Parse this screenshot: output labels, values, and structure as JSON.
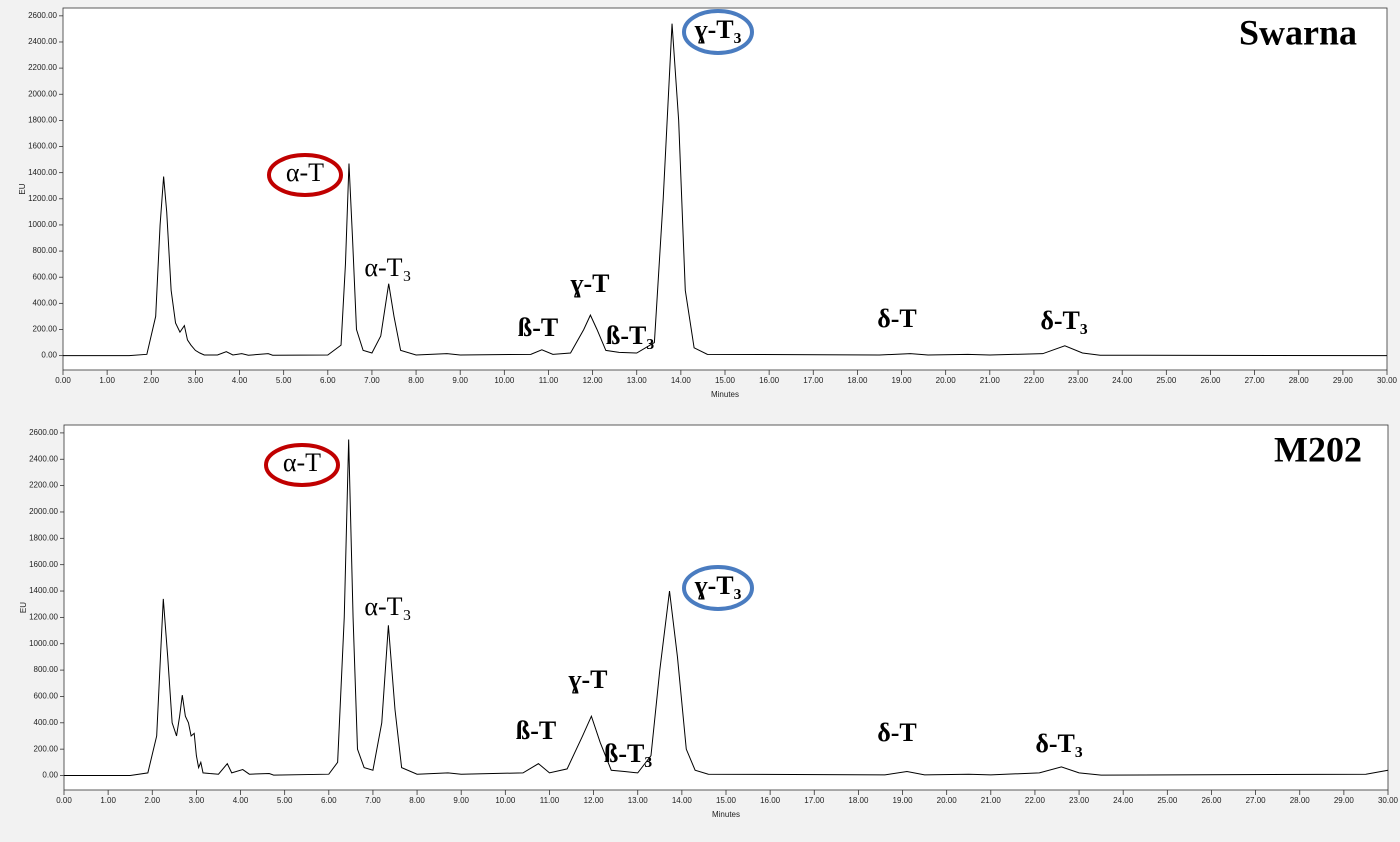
{
  "chart_data": [
    {
      "type": "line",
      "title": "Swarna",
      "x_label": "Minutes",
      "y_label": "EU",
      "xlim": [
        0,
        30
      ],
      "ylim": [
        -110,
        2660
      ],
      "xticks": [
        {
          "value": 0,
          "label": "0.00"
        },
        {
          "value": 1,
          "label": "1.00"
        },
        {
          "value": 2,
          "label": "2.00"
        },
        {
          "value": 3,
          "label": "3.00"
        },
        {
          "value": 4,
          "label": "4.00"
        },
        {
          "value": 5,
          "label": "5.00"
        },
        {
          "value": 6,
          "label": "6.00"
        },
        {
          "value": 7,
          "label": "7.00"
        },
        {
          "value": 8,
          "label": "8.00"
        },
        {
          "value": 9,
          "label": "9.00"
        },
        {
          "value": 10,
          "label": "10.00"
        },
        {
          "value": 11,
          "label": "11.00"
        },
        {
          "value": 12,
          "label": "12.00"
        },
        {
          "value": 13,
          "label": "13.00"
        },
        {
          "value": 14,
          "label": "14.00"
        },
        {
          "value": 15,
          "label": "15.00"
        },
        {
          "value": 16,
          "label": "16.00"
        },
        {
          "value": 17,
          "label": "17.00"
        },
        {
          "value": 18,
          "label": "18.00"
        },
        {
          "value": 19,
          "label": "19.00"
        },
        {
          "value": 20,
          "label": "20.00"
        },
        {
          "value": 21,
          "label": "21.00"
        },
        {
          "value": 22,
          "label": "22.00"
        },
        {
          "value": 23,
          "label": "23.00"
        },
        {
          "value": 24,
          "label": "24.00"
        },
        {
          "value": 25,
          "label": "25.00"
        },
        {
          "value": 26,
          "label": "26.00"
        },
        {
          "value": 27,
          "label": "27.00"
        },
        {
          "value": 28,
          "label": "28.00"
        },
        {
          "value": 29,
          "label": "29.00"
        },
        {
          "value": 30,
          "label": "30.00"
        }
      ],
      "yticks": [
        {
          "value": 0,
          "label": "0.00"
        },
        {
          "value": 200,
          "label": "200.00"
        },
        {
          "value": 400,
          "label": "400.00"
        },
        {
          "value": 600,
          "label": "600.00"
        },
        {
          "value": 800,
          "label": "800.00"
        },
        {
          "value": 1000,
          "label": "1000.00"
        },
        {
          "value": 1200,
          "label": "1200.00"
        },
        {
          "value": 1400,
          "label": "1400.00"
        },
        {
          "value": 1600,
          "label": "1600.00"
        },
        {
          "value": 1800,
          "label": "1800.00"
        },
        {
          "value": 2000,
          "label": "2000.00"
        },
        {
          "value": 2200,
          "label": "2200.00"
        },
        {
          "value": 2400,
          "label": "2400.00"
        },
        {
          "value": 2600,
          "label": "2600.00"
        }
      ],
      "color": "#000000",
      "x": [
        0,
        1.5,
        1.9,
        2.1,
        2.2,
        2.28,
        2.35,
        2.45,
        2.55,
        2.65,
        2.75,
        2.82,
        2.9,
        3.0,
        3.1,
        3.2,
        3.5,
        3.7,
        3.85,
        4.05,
        4.2,
        4.65,
        4.75,
        6.0,
        6.3,
        6.4,
        6.48,
        6.56,
        6.65,
        6.8,
        7.0,
        7.2,
        7.38,
        7.5,
        7.65,
        8.0,
        8.7,
        9.0,
        10.6,
        10.85,
        11.1,
        11.5,
        11.8,
        11.95,
        12.1,
        12.3,
        12.6,
        13.0,
        13.4,
        13.6,
        13.8,
        13.95,
        14.1,
        14.3,
        14.6,
        18.5,
        19.2,
        19.6,
        20.5,
        21.0,
        22.2,
        22.7,
        23.1,
        23.5,
        30
      ],
      "values": [
        0,
        0,
        10,
        300,
        1000,
        1370,
        1100,
        500,
        250,
        180,
        230,
        120,
        80,
        40,
        20,
        5,
        5,
        30,
        5,
        15,
        3,
        15,
        3,
        5,
        80,
        700,
        1470,
        900,
        200,
        40,
        20,
        150,
        550,
        300,
        40,
        5,
        15,
        5,
        10,
        45,
        10,
        20,
        200,
        310,
        200,
        40,
        25,
        20,
        100,
        1200,
        2540,
        1800,
        500,
        60,
        10,
        5,
        15,
        5,
        10,
        5,
        15,
        75,
        20,
        3,
        0
      ],
      "annotations": [
        "α-T",
        "α-T₃",
        "ß-T",
        "ɣ-T",
        "ß-T₃",
        "ɣ-T₃",
        "δ-T",
        "δ-T₃"
      ]
    },
    {
      "type": "line",
      "title": "M202",
      "x_label": "Minutes",
      "y_label": "EU",
      "xlim": [
        0,
        30
      ],
      "ylim": [
        -110,
        2660
      ],
      "xticks": [
        {
          "value": 0,
          "label": "0.00"
        },
        {
          "value": 1,
          "label": "1.00"
        },
        {
          "value": 2,
          "label": "2.00"
        },
        {
          "value": 3,
          "label": "3.00"
        },
        {
          "value": 4,
          "label": "4.00"
        },
        {
          "value": 5,
          "label": "5.00"
        },
        {
          "value": 6,
          "label": "6.00"
        },
        {
          "value": 7,
          "label": "7.00"
        },
        {
          "value": 8,
          "label": "8.00"
        },
        {
          "value": 9,
          "label": "9.00"
        },
        {
          "value": 10,
          "label": "10.00"
        },
        {
          "value": 11,
          "label": "11.00"
        },
        {
          "value": 12,
          "label": "12.00"
        },
        {
          "value": 13,
          "label": "13.00"
        },
        {
          "value": 14,
          "label": "14.00"
        },
        {
          "value": 15,
          "label": "15.00"
        },
        {
          "value": 16,
          "label": "16.00"
        },
        {
          "value": 17,
          "label": "17.00"
        },
        {
          "value": 18,
          "label": "18.00"
        },
        {
          "value": 19,
          "label": "19.00"
        },
        {
          "value": 20,
          "label": "20.00"
        },
        {
          "value": 21,
          "label": "21.00"
        },
        {
          "value": 22,
          "label": "22.00"
        },
        {
          "value": 23,
          "label": "23.00"
        },
        {
          "value": 24,
          "label": "24.00"
        },
        {
          "value": 25,
          "label": "25.00"
        },
        {
          "value": 26,
          "label": "26.00"
        },
        {
          "value": 27,
          "label": "27.00"
        },
        {
          "value": 28,
          "label": "28.00"
        },
        {
          "value": 29,
          "label": "29.00"
        },
        {
          "value": 30,
          "label": "30.00"
        }
      ],
      "yticks": [
        {
          "value": 0,
          "label": "0.00"
        },
        {
          "value": 200,
          "label": "200.00"
        },
        {
          "value": 400,
          "label": "400.00"
        },
        {
          "value": 600,
          "label": "600.00"
        },
        {
          "value": 800,
          "label": "800.00"
        },
        {
          "value": 1000,
          "label": "1000.00"
        },
        {
          "value": 1200,
          "label": "1200.00"
        },
        {
          "value": 1400,
          "label": "1400.00"
        },
        {
          "value": 1600,
          "label": "1600.00"
        },
        {
          "value": 1800,
          "label": "1800.00"
        },
        {
          "value": 2000,
          "label": "2000.00"
        },
        {
          "value": 2200,
          "label": "2200.00"
        },
        {
          "value": 2400,
          "label": "2400.00"
        },
        {
          "value": 2600,
          "label": "2600.00"
        }
      ],
      "color": "#000000",
      "x": [
        0,
        1.5,
        1.9,
        2.1,
        2.2,
        2.25,
        2.35,
        2.45,
        2.55,
        2.62,
        2.68,
        2.75,
        2.82,
        2.88,
        2.95,
        3.0,
        3.05,
        3.1,
        3.15,
        3.3,
        3.5,
        3.7,
        3.8,
        4.05,
        4.2,
        4.65,
        4.75,
        6.0,
        6.2,
        6.35,
        6.45,
        6.55,
        6.65,
        6.8,
        7.0,
        7.2,
        7.35,
        7.5,
        7.65,
        8.0,
        8.7,
        9.0,
        10.4,
        10.75,
        11.0,
        11.4,
        11.75,
        11.95,
        12.15,
        12.4,
        12.7,
        13.0,
        13.3,
        13.5,
        13.72,
        13.9,
        14.1,
        14.3,
        14.6,
        18.6,
        19.1,
        19.5,
        20.5,
        21.0,
        22.1,
        22.6,
        23.0,
        23.5,
        29.5,
        30
      ],
      "values": [
        0,
        0,
        20,
        300,
        1000,
        1340,
        900,
        400,
        300,
        450,
        610,
        450,
        400,
        300,
        320,
        150,
        60,
        100,
        20,
        15,
        10,
        90,
        20,
        45,
        10,
        15,
        3,
        10,
        100,
        1200,
        2550,
        1200,
        200,
        60,
        40,
        400,
        1140,
        500,
        60,
        10,
        20,
        10,
        20,
        90,
        20,
        50,
        300,
        450,
        250,
        40,
        30,
        20,
        150,
        800,
        1400,
        900,
        200,
        40,
        10,
        5,
        30,
        5,
        10,
        5,
        20,
        65,
        20,
        3,
        10,
        40
      ],
      "annotations": [
        "α-T",
        "α-T₃",
        "ß-T",
        "ɣ-T",
        "ß-T₃",
        "ɣ-T₃",
        "δ-T",
        "δ-T₃"
      ]
    }
  ]
}
